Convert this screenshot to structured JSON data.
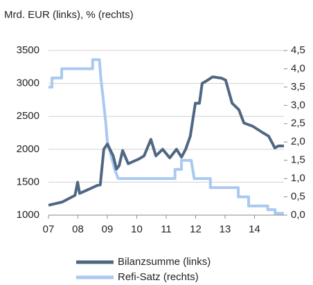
{
  "chart_data": {
    "type": "line",
    "title": "Mrd. EUR (links), % (rechts)",
    "xlim": [
      2007,
      2015
    ],
    "xticks": [
      {
        "value": 2007,
        "label": "07"
      },
      {
        "value": 2008,
        "label": "08"
      },
      {
        "value": 2009,
        "label": "09"
      },
      {
        "value": 2010,
        "label": "10"
      },
      {
        "value": 2011,
        "label": "11"
      },
      {
        "value": 2012,
        "label": "12"
      },
      {
        "value": 2013,
        "label": "13"
      },
      {
        "value": 2014,
        "label": "14"
      }
    ],
    "ylim": [
      1000,
      3500
    ],
    "yticks": [
      1000,
      1500,
      2000,
      2500,
      3000,
      3500
    ],
    "y2lim": [
      0,
      4.5
    ],
    "y2ticks": [
      {
        "value": 0,
        "label": "0,0"
      },
      {
        "value": 0.5,
        "label": "0,5"
      },
      {
        "value": 1,
        "label": "1,0"
      },
      {
        "value": 1.5,
        "label": "1,5"
      },
      {
        "value": 2,
        "label": "2,0"
      },
      {
        "value": 2.5,
        "label": "2,5"
      },
      {
        "value": 3,
        "label": "3,0"
      },
      {
        "value": 3.5,
        "label": "3,5"
      },
      {
        "value": 4,
        "label": "4,0"
      },
      {
        "value": 4.5,
        "label": "4,5"
      }
    ],
    "grid": true,
    "series": [
      {
        "name": "Bilanzsumme (links)",
        "color": "#4f6782",
        "axis": "y",
        "x": [
          2007.0,
          2007.47,
          2007.9,
          2007.99,
          2008.06,
          2008.41,
          2008.65,
          2008.76,
          2008.88,
          2009.0,
          2009.2,
          2009.31,
          2009.4,
          2009.52,
          2009.71,
          2010.06,
          2010.25,
          2010.48,
          2010.65,
          2010.88,
          2011.12,
          2011.35,
          2011.52,
          2011.66,
          2011.82,
          2011.99,
          2012.13,
          2012.22,
          2012.41,
          2012.58,
          2012.88,
          2013.02,
          2013.24,
          2013.47,
          2013.64,
          2013.94,
          2014.29,
          2014.48,
          2014.6,
          2014.69,
          2014.81,
          2015.0
        ],
        "values": [
          1150,
          1200,
          1300,
          1500,
          1330,
          1400,
          1450,
          1460,
          2000,
          2080,
          1900,
          1700,
          1750,
          1980,
          1780,
          1850,
          1900,
          2150,
          1900,
          2000,
          1870,
          2000,
          1880,
          2000,
          2200,
          2700,
          2700,
          3000,
          3050,
          3100,
          3080,
          3050,
          2700,
          2600,
          2400,
          2350,
          2250,
          2200,
          2100,
          2020,
          2050,
          2050
        ]
      },
      {
        "name": "Refi-Satz (rechts)",
        "color": "#a9c9ef",
        "axis": "y2",
        "x": [
          2007.0,
          2007.12,
          2007.12,
          2007.45,
          2007.45,
          2008.5,
          2008.5,
          2008.73,
          2008.78,
          2008.85,
          2008.95,
          2009.0,
          2009.17,
          2009.25,
          2009.37,
          2011.3,
          2011.3,
          2011.52,
          2011.52,
          2011.85,
          2011.9,
          2011.95,
          2012.5,
          2012.5,
          2013.45,
          2013.45,
          2013.8,
          2013.8,
          2014.45,
          2014.45,
          2014.7,
          2014.7,
          2015.0
        ],
        "values": [
          3.5,
          3.5,
          3.75,
          3.75,
          4.0,
          4.0,
          4.25,
          4.25,
          3.75,
          3.25,
          2.5,
          2.0,
          1.5,
          1.25,
          1.0,
          1.0,
          1.25,
          1.25,
          1.5,
          1.5,
          1.25,
          1.0,
          1.0,
          0.75,
          0.75,
          0.5,
          0.5,
          0.25,
          0.25,
          0.15,
          0.15,
          0.05,
          0.05
        ]
      }
    ]
  }
}
